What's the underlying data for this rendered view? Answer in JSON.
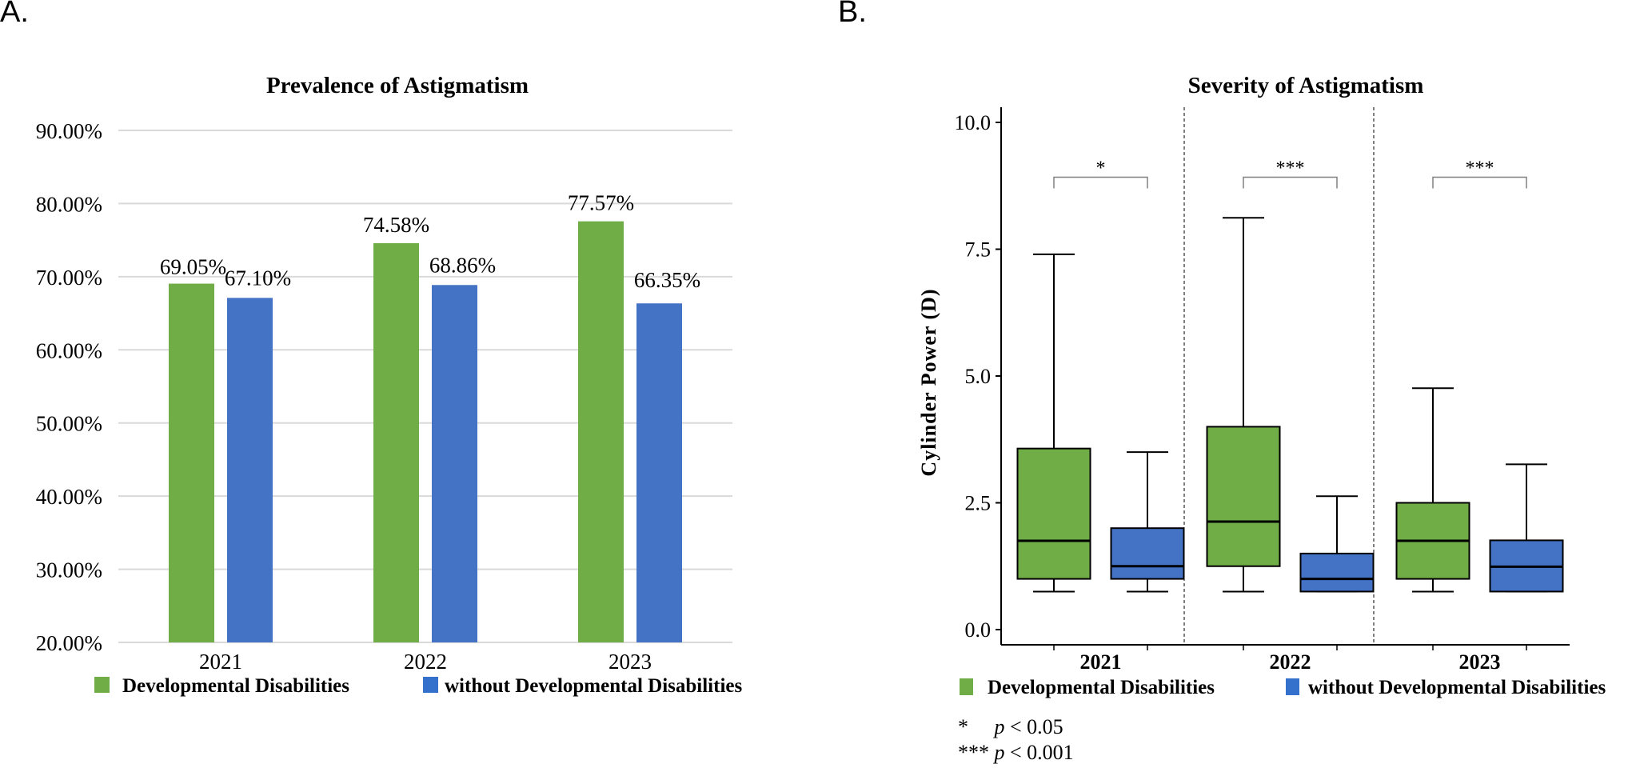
{
  "panels": {
    "a_label": "A.",
    "b_label": "B."
  },
  "colors": {
    "dd": "#70AD47",
    "non_dd": "#4472C4",
    "legend_non_dd": "#3371CC",
    "gridline": "#D9D9D9",
    "bracket": "#808080"
  },
  "footnote": {
    "line1_sym": "*",
    "line1_p": "p",
    "line1_text": "< 0.05",
    "line2_sym": "***",
    "line2_p": "p",
    "line2_text": "< 0.001"
  },
  "chart_data": [
    {
      "type": "bar",
      "title": "Prevalence of Astigmatism",
      "categories": [
        "2021",
        "2022",
        "2023"
      ],
      "series": [
        {
          "name": "Developmental Disabilities",
          "values": [
            69.05,
            74.58,
            77.57
          ],
          "labels": [
            "69.05%",
            "74.58%",
            "77.57%"
          ]
        },
        {
          "name": "without Developmental Disabilities",
          "values": [
            67.1,
            68.86,
            66.35
          ],
          "labels": [
            "67.10%",
            "68.86%",
            "66.35%"
          ]
        }
      ],
      "xlabel": "",
      "ylabel": "",
      "ylim": [
        20,
        90
      ],
      "yticks": [
        "20.00%",
        "30.00%",
        "40.00%",
        "50.00%",
        "60.00%",
        "70.00%",
        "80.00%",
        "90.00%"
      ],
      "ytick_values": [
        20,
        30,
        40,
        50,
        60,
        70,
        80,
        90
      ],
      "grid": true,
      "legend_position": "bottom"
    },
    {
      "type": "boxplot",
      "title": "Severity of Astigmatism",
      "categories": [
        "2021",
        "2022",
        "2023"
      ],
      "ylabel": "Cylinder Power (D)",
      "xlabel": "",
      "ylim": [
        -0.5,
        10.3
      ],
      "yticks": [
        "0.0",
        "2.5",
        "5.0",
        "7.5",
        "10.0"
      ],
      "ytick_values": [
        0,
        2.5,
        5.0,
        7.5,
        10.0
      ],
      "grid": false,
      "legend_position": "bottom",
      "series": [
        {
          "name": "Developmental Disabilities",
          "boxes": [
            {
              "whisker_low": 0.75,
              "q1": 1.0,
              "median": 1.75,
              "q3": 3.57,
              "whisker_high": 7.4
            },
            {
              "whisker_low": 0.75,
              "q1": 1.25,
              "median": 2.13,
              "q3": 4.0,
              "whisker_high": 8.12
            },
            {
              "whisker_low": 0.75,
              "q1": 1.0,
              "median": 1.75,
              "q3": 2.5,
              "whisker_high": 4.76
            }
          ]
        },
        {
          "name": "without Developmental Disabilities",
          "boxes": [
            {
              "whisker_low": 0.75,
              "q1": 1.0,
              "median": 1.25,
              "q3": 2.0,
              "whisker_high": 3.5
            },
            {
              "whisker_low": 0.75,
              "q1": 0.75,
              "median": 1.0,
              "q3": 1.5,
              "whisker_high": 2.63
            },
            {
              "whisker_low": 0.75,
              "q1": 0.75,
              "median": 1.24,
              "q3": 1.76,
              "whisker_high": 3.26
            }
          ]
        }
      ],
      "significance": [
        {
          "category": "2021",
          "label": "*",
          "bracket_y": 8.92
        },
        {
          "category": "2022",
          "label": "***",
          "bracket_y": 8.92
        },
        {
          "category": "2023",
          "label": "***",
          "bracket_y": 8.92
        }
      ]
    }
  ]
}
